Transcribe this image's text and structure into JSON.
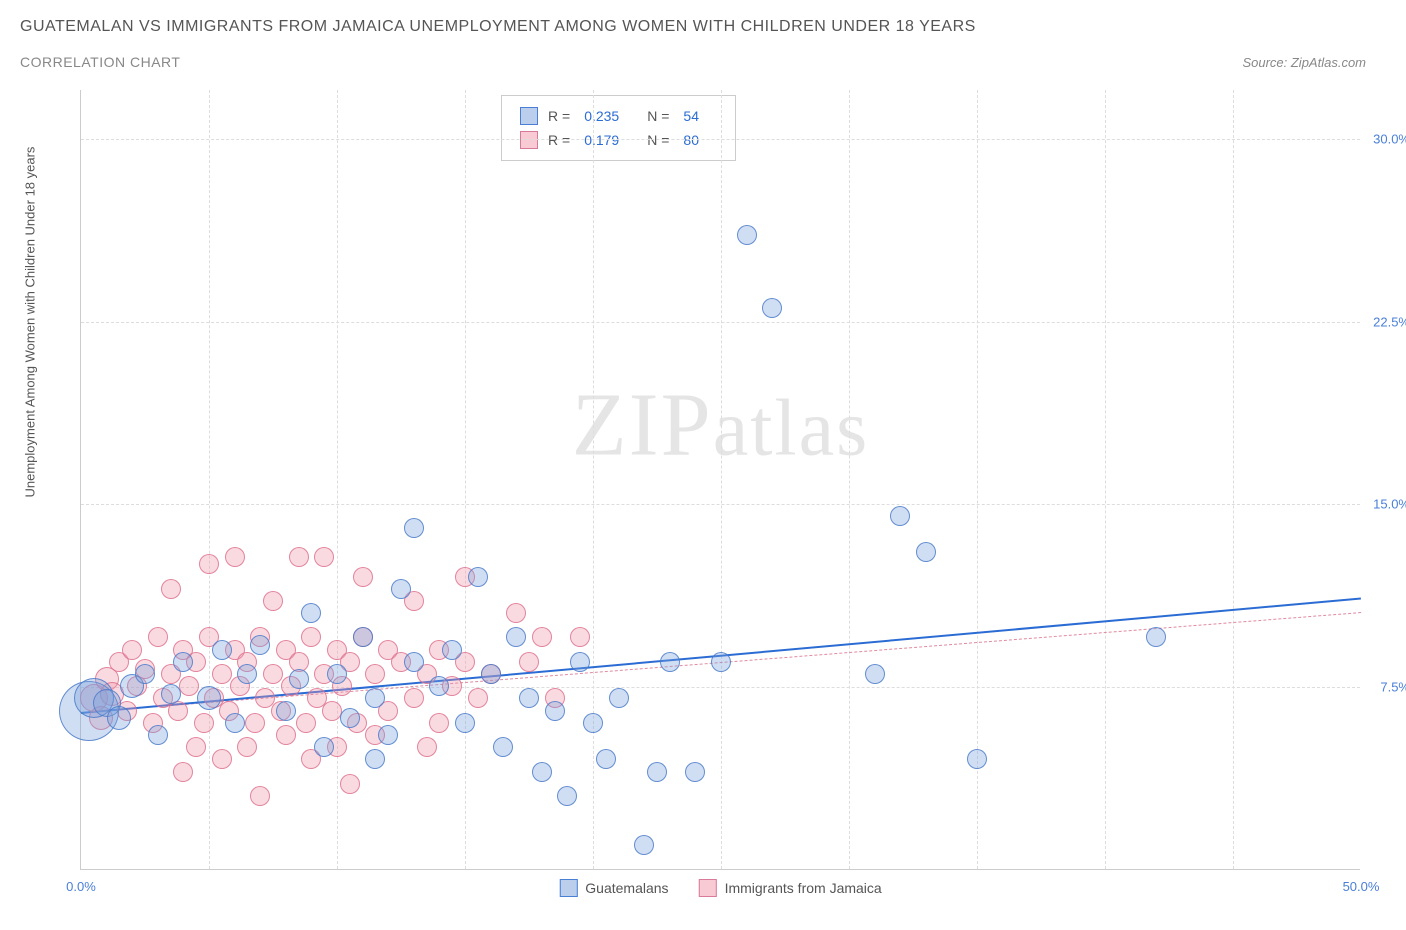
{
  "header": {
    "title": "GUATEMALAN VS IMMIGRANTS FROM JAMAICA UNEMPLOYMENT AMONG WOMEN WITH CHILDREN UNDER 18 YEARS",
    "subtitle": "CORRELATION CHART",
    "source": "Source: ZipAtlas.com"
  },
  "chart": {
    "type": "scatter",
    "y_axis_label": "Unemployment Among Women with Children Under 18 years",
    "xlim": [
      0,
      50
    ],
    "ylim": [
      0,
      32
    ],
    "x_ticks": [
      0,
      50
    ],
    "y_ticks": [
      7.5,
      15.0,
      22.5,
      30.0
    ],
    "x_tick_labels": [
      "0.0%",
      "50.0%"
    ],
    "y_tick_labels": [
      "7.5%",
      "15.0%",
      "22.5%",
      "30.0%"
    ],
    "grid_v_positions": [
      5,
      10,
      15,
      20,
      25,
      30,
      35,
      40,
      45
    ],
    "grid_h_positions": [
      7.5,
      15.0,
      22.5,
      30.0
    ],
    "background_color": "#ffffff",
    "grid_color": "#dddddd",
    "watermark": "ZIPatlas",
    "stats": {
      "series1": {
        "R": "0.235",
        "N": "54",
        "color": "#4a7fd8"
      },
      "series2": {
        "R": "0.179",
        "N": "80",
        "color": "#e08aa0"
      }
    },
    "legend": {
      "series1": "Guatemalans",
      "series2": "Immigrants from Jamaica"
    },
    "trend_lines": {
      "blue": {
        "x1": 0,
        "y1": 6.5,
        "x2": 50,
        "y2": 11.2,
        "color": "#2b6cd4",
        "width": 2
      },
      "pink": {
        "x1": 0,
        "y1": 6.5,
        "x2": 50,
        "y2": 10.6,
        "color": "#e08aa0",
        "dashed": true
      }
    },
    "series_blue": {
      "color_fill": "rgba(120,160,220,0.35)",
      "color_stroke": "rgba(70,120,200,0.8)",
      "points": [
        {
          "x": 0.3,
          "y": 6.5,
          "r": 30
        },
        {
          "x": 0.5,
          "y": 7.0,
          "r": 20
        },
        {
          "x": 1.0,
          "y": 6.8,
          "r": 14
        },
        {
          "x": 1.5,
          "y": 6.2,
          "r": 12
        },
        {
          "x": 2.0,
          "y": 7.5,
          "r": 12
        },
        {
          "x": 2.5,
          "y": 8.0,
          "r": 10
        },
        {
          "x": 3.0,
          "y": 5.5,
          "r": 10
        },
        {
          "x": 3.5,
          "y": 7.2,
          "r": 10
        },
        {
          "x": 4.0,
          "y": 8.5,
          "r": 10
        },
        {
          "x": 5.0,
          "y": 7.0,
          "r": 12
        },
        {
          "x": 5.5,
          "y": 9.0,
          "r": 10
        },
        {
          "x": 6.0,
          "y": 6.0,
          "r": 10
        },
        {
          "x": 6.5,
          "y": 8.0,
          "r": 10
        },
        {
          "x": 7.0,
          "y": 9.2,
          "r": 10
        },
        {
          "x": 8.0,
          "y": 6.5,
          "r": 10
        },
        {
          "x": 8.5,
          "y": 7.8,
          "r": 10
        },
        {
          "x": 9.0,
          "y": 10.5,
          "r": 10
        },
        {
          "x": 10.0,
          "y": 8.0,
          "r": 10
        },
        {
          "x": 10.5,
          "y": 6.2,
          "r": 10
        },
        {
          "x": 11.0,
          "y": 9.5,
          "r": 10
        },
        {
          "x": 11.5,
          "y": 7.0,
          "r": 10
        },
        {
          "x": 12.0,
          "y": 5.5,
          "r": 10
        },
        {
          "x": 12.5,
          "y": 11.5,
          "r": 10
        },
        {
          "x": 13.0,
          "y": 8.5,
          "r": 10
        },
        {
          "x": 13.0,
          "y": 14.0,
          "r": 10
        },
        {
          "x": 14.0,
          "y": 7.5,
          "r": 10
        },
        {
          "x": 14.5,
          "y": 9.0,
          "r": 10
        },
        {
          "x": 15.0,
          "y": 6.0,
          "r": 10
        },
        {
          "x": 15.5,
          "y": 12.0,
          "r": 10
        },
        {
          "x": 16.0,
          "y": 8.0,
          "r": 10
        },
        {
          "x": 16.5,
          "y": 5.0,
          "r": 10
        },
        {
          "x": 17.0,
          "y": 9.5,
          "r": 10
        },
        {
          "x": 17.5,
          "y": 7.0,
          "r": 10
        },
        {
          "x": 18.0,
          "y": 4.0,
          "r": 10
        },
        {
          "x": 18.5,
          "y": 6.5,
          "r": 10
        },
        {
          "x": 19.0,
          "y": 3.0,
          "r": 10
        },
        {
          "x": 19.5,
          "y": 8.5,
          "r": 10
        },
        {
          "x": 20.0,
          "y": 6.0,
          "r": 10
        },
        {
          "x": 20.5,
          "y": 4.5,
          "r": 10
        },
        {
          "x": 21.0,
          "y": 7.0,
          "r": 10
        },
        {
          "x": 22.0,
          "y": 1.0,
          "r": 10
        },
        {
          "x": 22.5,
          "y": 4.0,
          "r": 10
        },
        {
          "x": 23.0,
          "y": 8.5,
          "r": 10
        },
        {
          "x": 24.0,
          "y": 4.0,
          "r": 10
        },
        {
          "x": 25.0,
          "y": 8.5,
          "r": 10
        },
        {
          "x": 26.0,
          "y": 26.0,
          "r": 10
        },
        {
          "x": 27.0,
          "y": 23.0,
          "r": 10
        },
        {
          "x": 31.0,
          "y": 8.0,
          "r": 10
        },
        {
          "x": 32.0,
          "y": 14.5,
          "r": 10
        },
        {
          "x": 33.0,
          "y": 13.0,
          "r": 10
        },
        {
          "x": 35.0,
          "y": 4.5,
          "r": 10
        },
        {
          "x": 42.0,
          "y": 9.5,
          "r": 10
        },
        {
          "x": 9.5,
          "y": 5.0,
          "r": 10
        },
        {
          "x": 11.5,
          "y": 4.5,
          "r": 10
        }
      ]
    },
    "series_pink": {
      "color_fill": "rgba(240,150,170,0.35)",
      "color_stroke": "rgba(220,110,140,0.8)",
      "points": [
        {
          "x": 0.5,
          "y": 7.0,
          "r": 14
        },
        {
          "x": 0.8,
          "y": 6.2,
          "r": 12
        },
        {
          "x": 1.0,
          "y": 7.8,
          "r": 12
        },
        {
          "x": 1.2,
          "y": 7.2,
          "r": 12
        },
        {
          "x": 1.5,
          "y": 8.5,
          "r": 10
        },
        {
          "x": 1.8,
          "y": 6.5,
          "r": 10
        },
        {
          "x": 2.0,
          "y": 9.0,
          "r": 10
        },
        {
          "x": 2.2,
          "y": 7.5,
          "r": 10
        },
        {
          "x": 2.5,
          "y": 8.2,
          "r": 10
        },
        {
          "x": 2.8,
          "y": 6.0,
          "r": 10
        },
        {
          "x": 3.0,
          "y": 9.5,
          "r": 10
        },
        {
          "x": 3.2,
          "y": 7.0,
          "r": 10
        },
        {
          "x": 3.5,
          "y": 8.0,
          "r": 10
        },
        {
          "x": 3.5,
          "y": 11.5,
          "r": 10
        },
        {
          "x": 3.8,
          "y": 6.5,
          "r": 10
        },
        {
          "x": 4.0,
          "y": 9.0,
          "r": 10
        },
        {
          "x": 4.0,
          "y": 4.0,
          "r": 10
        },
        {
          "x": 4.2,
          "y": 7.5,
          "r": 10
        },
        {
          "x": 4.5,
          "y": 8.5,
          "r": 10
        },
        {
          "x": 4.5,
          "y": 5.0,
          "r": 10
        },
        {
          "x": 4.8,
          "y": 6.0,
          "r": 10
        },
        {
          "x": 5.0,
          "y": 9.5,
          "r": 10
        },
        {
          "x": 5.0,
          "y": 12.5,
          "r": 10
        },
        {
          "x": 5.2,
          "y": 7.0,
          "r": 10
        },
        {
          "x": 5.5,
          "y": 8.0,
          "r": 10
        },
        {
          "x": 5.5,
          "y": 4.5,
          "r": 10
        },
        {
          "x": 5.8,
          "y": 6.5,
          "r": 10
        },
        {
          "x": 6.0,
          "y": 9.0,
          "r": 10
        },
        {
          "x": 6.0,
          "y": 12.8,
          "r": 10
        },
        {
          "x": 6.2,
          "y": 7.5,
          "r": 10
        },
        {
          "x": 6.5,
          "y": 8.5,
          "r": 10
        },
        {
          "x": 6.5,
          "y": 5.0,
          "r": 10
        },
        {
          "x": 6.8,
          "y": 6.0,
          "r": 10
        },
        {
          "x": 7.0,
          "y": 9.5,
          "r": 10
        },
        {
          "x": 7.0,
          "y": 3.0,
          "r": 10
        },
        {
          "x": 7.2,
          "y": 7.0,
          "r": 10
        },
        {
          "x": 7.5,
          "y": 8.0,
          "r": 10
        },
        {
          "x": 7.5,
          "y": 11.0,
          "r": 10
        },
        {
          "x": 7.8,
          "y": 6.5,
          "r": 10
        },
        {
          "x": 8.0,
          "y": 9.0,
          "r": 10
        },
        {
          "x": 8.0,
          "y": 5.5,
          "r": 10
        },
        {
          "x": 8.2,
          "y": 7.5,
          "r": 10
        },
        {
          "x": 8.5,
          "y": 8.5,
          "r": 10
        },
        {
          "x": 8.5,
          "y": 12.8,
          "r": 10
        },
        {
          "x": 8.8,
          "y": 6.0,
          "r": 10
        },
        {
          "x": 9.0,
          "y": 9.5,
          "r": 10
        },
        {
          "x": 9.0,
          "y": 4.5,
          "r": 10
        },
        {
          "x": 9.2,
          "y": 7.0,
          "r": 10
        },
        {
          "x": 9.5,
          "y": 8.0,
          "r": 10
        },
        {
          "x": 9.5,
          "y": 12.8,
          "r": 10
        },
        {
          "x": 9.8,
          "y": 6.5,
          "r": 10
        },
        {
          "x": 10.0,
          "y": 9.0,
          "r": 10
        },
        {
          "x": 10.0,
          "y": 5.0,
          "r": 10
        },
        {
          "x": 10.2,
          "y": 7.5,
          "r": 10
        },
        {
          "x": 10.5,
          "y": 8.5,
          "r": 10
        },
        {
          "x": 10.5,
          "y": 3.5,
          "r": 10
        },
        {
          "x": 10.8,
          "y": 6.0,
          "r": 10
        },
        {
          "x": 11.0,
          "y": 9.5,
          "r": 10
        },
        {
          "x": 11.0,
          "y": 12.0,
          "r": 10
        },
        {
          "x": 11.5,
          "y": 8.0,
          "r": 10
        },
        {
          "x": 11.5,
          "y": 5.5,
          "r": 10
        },
        {
          "x": 12.0,
          "y": 9.0,
          "r": 10
        },
        {
          "x": 12.0,
          "y": 6.5,
          "r": 10
        },
        {
          "x": 12.5,
          "y": 8.5,
          "r": 10
        },
        {
          "x": 13.0,
          "y": 7.0,
          "r": 10
        },
        {
          "x": 13.0,
          "y": 11.0,
          "r": 10
        },
        {
          "x": 13.5,
          "y": 8.0,
          "r": 10
        },
        {
          "x": 13.5,
          "y": 5.0,
          "r": 10
        },
        {
          "x": 14.0,
          "y": 9.0,
          "r": 10
        },
        {
          "x": 14.0,
          "y": 6.0,
          "r": 10
        },
        {
          "x": 14.5,
          "y": 7.5,
          "r": 10
        },
        {
          "x": 15.0,
          "y": 8.5,
          "r": 10
        },
        {
          "x": 15.0,
          "y": 12.0,
          "r": 10
        },
        {
          "x": 15.5,
          "y": 7.0,
          "r": 10
        },
        {
          "x": 16.0,
          "y": 8.0,
          "r": 10
        },
        {
          "x": 17.0,
          "y": 10.5,
          "r": 10
        },
        {
          "x": 17.5,
          "y": 8.5,
          "r": 10
        },
        {
          "x": 18.0,
          "y": 9.5,
          "r": 10
        },
        {
          "x": 18.5,
          "y": 7.0,
          "r": 10
        },
        {
          "x": 19.5,
          "y": 9.5,
          "r": 10
        }
      ]
    }
  }
}
